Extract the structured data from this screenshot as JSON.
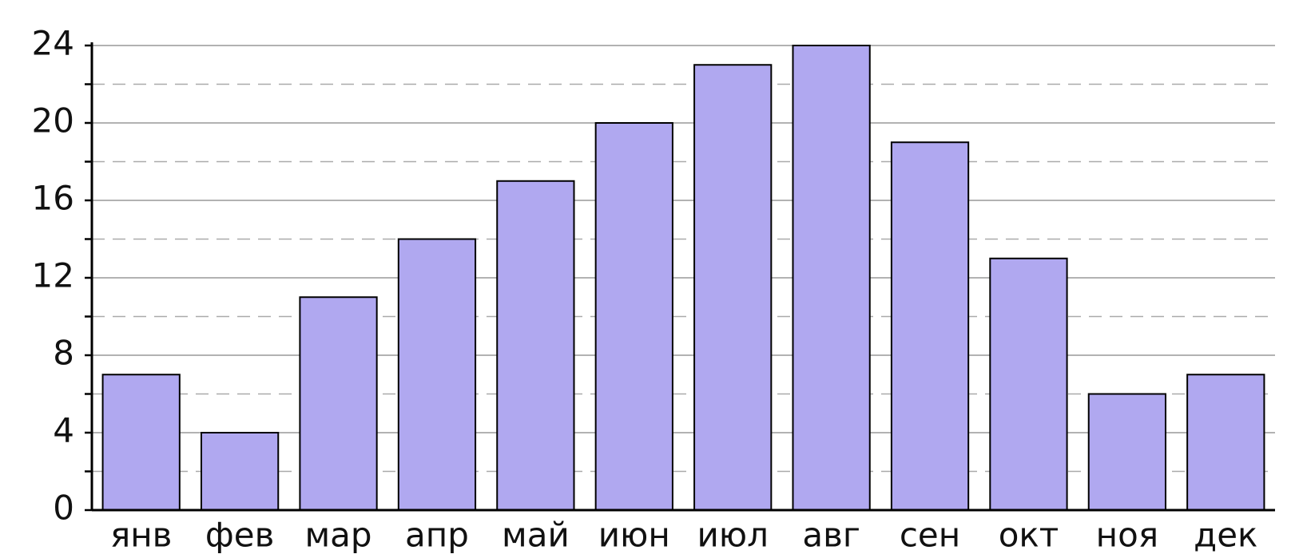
{
  "chart_data": {
    "type": "bar",
    "categories": [
      "янв",
      "фев",
      "мар",
      "апр",
      "май",
      "июн",
      "июл",
      "авг",
      "сен",
      "окт",
      "ноя",
      "дек"
    ],
    "values": [
      7,
      4,
      11,
      14,
      17,
      20,
      23,
      24,
      19,
      13,
      6,
      7
    ],
    "color": "#b0a8f0",
    "ylim": [
      0,
      24
    ],
    "yticks": [
      0,
      4,
      8,
      12,
      16,
      20,
      24
    ],
    "minor_yticks": [
      2,
      6,
      10,
      14,
      18,
      22
    ],
    "grid": true
  }
}
